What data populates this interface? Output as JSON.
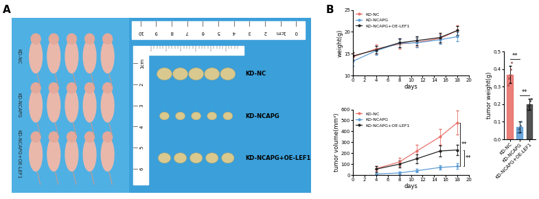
{
  "panel_labels": [
    "A",
    "B"
  ],
  "photo": {
    "groups": [
      "KD-NC",
      "KD-NCAPG",
      "KD-NCAPG+OE-LEF1"
    ],
    "ruler_top": [
      "0",
      "1cm",
      "2",
      "3",
      "4",
      "5",
      "6",
      "7",
      "8",
      "9",
      "10"
    ],
    "ruler_side": [
      "1cm",
      "2",
      "3",
      "4",
      "5",
      "6"
    ]
  },
  "chart_data": [
    {
      "type": "line",
      "xlabel": "days",
      "ylabel": "weight(g)",
      "x": [
        0,
        4,
        8,
        11,
        15,
        18
      ],
      "series": [
        {
          "name": "KD-NC",
          "color": "#e8706a",
          "marker": "o",
          "values": [
            14.3,
            16.1,
            17.2,
            17.6,
            18.5,
            20.3
          ],
          "errors": [
            0.8,
            1.0,
            1.1,
            1.0,
            1.0,
            1.1
          ]
        },
        {
          "name": "KD-NCAPG",
          "color": "#5b9bd5",
          "marker": "o",
          "values": [
            13.3,
            15.7,
            17.4,
            17.5,
            18.2,
            18.9
          ],
          "errors": [
            1.0,
            1.0,
            1.0,
            1.1,
            1.0,
            1.0
          ]
        },
        {
          "name": "KD-NCAPG+OE-LEF1",
          "color": "#222222",
          "marker": "o",
          "values": [
            14.5,
            15.9,
            17.5,
            18.0,
            18.7,
            20.3
          ],
          "errors": [
            0.8,
            0.9,
            1.0,
            1.0,
            1.1,
            1.0
          ]
        }
      ],
      "xlim": [
        0,
        20
      ],
      "ylim": [
        10,
        25
      ],
      "xticks": [
        0,
        2,
        4,
        6,
        8,
        10,
        12,
        14,
        16,
        18,
        20
      ],
      "yticks": [
        10,
        15,
        20,
        25
      ],
      "legend": "upper left"
    },
    {
      "type": "line",
      "xlabel": "days",
      "ylabel": "tumor volume(mm³)",
      "x": [
        4,
        8,
        11,
        15,
        18
      ],
      "series": [
        {
          "name": "KD-NC",
          "color": "#e8706a",
          "marker": "o",
          "values": [
            60,
            120,
            220,
            350,
            480
          ],
          "errors": [
            20,
            40,
            60,
            70,
            110
          ]
        },
        {
          "name": "KD-NCAPG",
          "color": "#5b9bd5",
          "marker": "o",
          "values": [
            10,
            20,
            40,
            70,
            80
          ],
          "errors": [
            5,
            10,
            15,
            20,
            25
          ]
        },
        {
          "name": "KD-NCAPG+OE-LEF1",
          "color": "#222222",
          "marker": "o",
          "values": [
            55,
            100,
            150,
            220,
            230
          ],
          "errors": [
            30,
            30,
            40,
            50,
            50
          ]
        }
      ],
      "xlim": [
        0,
        20
      ],
      "ylim": [
        0,
        600
      ],
      "xticks": [
        0,
        2,
        4,
        6,
        8,
        10,
        12,
        14,
        16,
        18,
        20
      ],
      "yticks": [
        0,
        100,
        200,
        300,
        400,
        500,
        600
      ],
      "legend": "upper left",
      "significance": [
        {
          "between": [
            "KD-NC",
            "KD-NCAPG"
          ],
          "text": "**"
        },
        {
          "between": [
            "KD-NCAPG+OE-LEF1",
            "KD-NCAPG"
          ],
          "text": "**"
        }
      ]
    },
    {
      "type": "bar",
      "ylabel": "tumor weight(g)",
      "categories": [
        "KD-NC",
        "KD-NCAPG",
        "KD-NCAPG+OE-LEF1"
      ],
      "values": [
        0.37,
        0.07,
        0.2
      ],
      "errors": [
        0.05,
        0.03,
        0.03
      ],
      "points": [
        [
          0.31,
          0.35,
          0.37,
          0.4,
          0.44
        ],
        [
          0.04,
          0.06,
          0.07,
          0.08,
          0.1
        ],
        [
          0.17,
          0.19,
          0.2,
          0.22,
          0.23
        ]
      ],
      "colors": [
        "#e8706a",
        "#5b9bd5",
        "#404040"
      ],
      "ylim": [
        0,
        0.5
      ],
      "yticks": [
        {
          "value": 0,
          "label": "0.0"
        },
        0.1,
        0.2,
        0.3,
        0.4,
        0.5
      ],
      "significance": [
        {
          "between": [
            "KD-NC",
            "KD-NCAPG"
          ],
          "text": "**"
        },
        {
          "between": [
            "KD-NCAPG",
            "KD-NCAPG+OE-LEF1"
          ],
          "text": "**"
        }
      ]
    }
  ]
}
